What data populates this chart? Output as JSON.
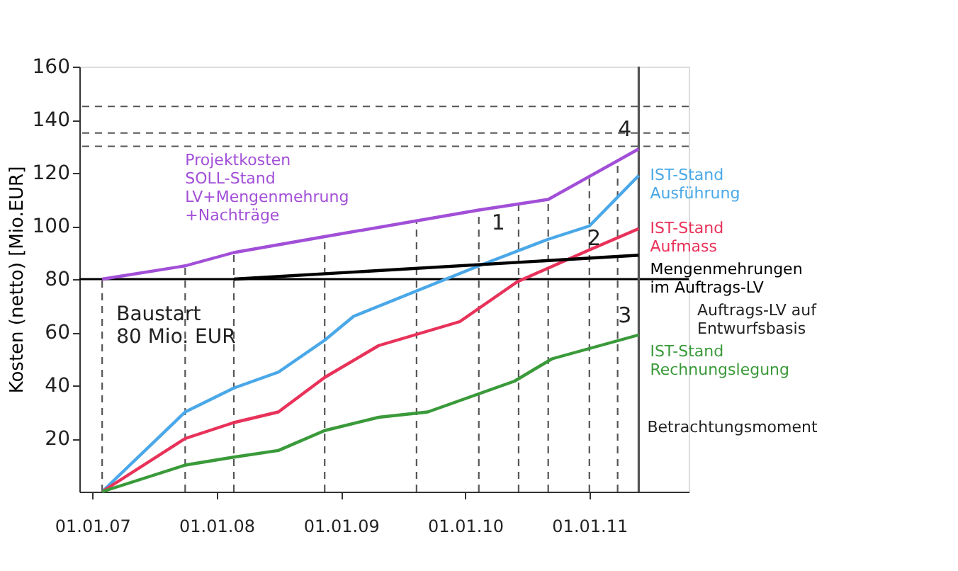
{
  "chart_data": {
    "type": "line",
    "ylabel": "Kosten (netto) [Mio.EUR]",
    "xlim": [
      "2006-11-24",
      "2011-10-20"
    ],
    "xticks": [
      {
        "value": "2007-01-01",
        "label": "01.01.07"
      },
      {
        "value": "2008-01-01",
        "label": "01.01.08"
      },
      {
        "value": "2009-01-01",
        "label": "01.01.09"
      },
      {
        "value": "2010-01-01",
        "label": "01.01.10"
      },
      {
        "value": "2011-01-01",
        "label": "01.01.11"
      }
    ],
    "ylim": [
      0,
      160
    ],
    "yticks": [
      20,
      40,
      60,
      80,
      100,
      120,
      140,
      160
    ],
    "grid": false,
    "marker": "none",
    "line_style": "solid",
    "series": [
      {
        "name": "Projektkosten\nSOLL-Stand\nLV+Mengenmehrung\n+Nachträge",
        "color": "#a24fd8",
        "x": [
          "2007-01-30",
          "2007-10-01",
          "2008-02-21",
          "2008-11-14",
          "2010-02-10",
          "2010-09-02",
          "2011-05-26"
        ],
        "values": [
          80,
          85,
          90,
          96,
          106,
          110,
          129
        ]
      },
      {
        "name": "IST-Stand\nAusführung",
        "color": "#4aa8e8",
        "x": [
          "2007-01-30",
          "2007-10-01",
          "2008-02-21",
          "2008-07-01",
          "2008-11-14",
          "2009-02-07",
          "2010-02-10",
          "2010-09-02",
          "2011-01-01",
          "2011-05-26"
        ],
        "values": [
          0,
          30,
          39,
          45,
          57,
          66,
          85,
          95,
          100,
          119
        ]
      },
      {
        "name": "IST-Stand\nAufmass",
        "color": "#e8325a",
        "x": [
          "2007-01-30",
          "2007-10-01",
          "2008-02-21",
          "2008-07-01",
          "2008-11-14",
          "2009-04-22",
          "2009-12-16",
          "2010-06-03",
          "2011-01-01",
          "2011-05-26"
        ],
        "values": [
          0,
          20,
          26,
          30,
          43,
          55,
          64,
          79,
          91,
          99
        ]
      },
      {
        "name": "Mengenmehrungen\nim Auftrags-LV",
        "color": "#000000",
        "x": [
          "2008-02-21",
          "2011-05-26"
        ],
        "values": [
          80,
          89
        ]
      },
      {
        "name": "IST-Stand\nRechnungslegung",
        "color": "#3a9a3a",
        "x": [
          "2007-01-30",
          "2007-10-01",
          "2008-02-21",
          "2008-07-01",
          "2008-11-14",
          "2009-04-22",
          "2009-09-13",
          "2010-05-26",
          "2010-09-13",
          "2011-05-26"
        ],
        "values": [
          0,
          10,
          13,
          15.5,
          23,
          28,
          30,
          41.6,
          50,
          59
        ]
      }
    ],
    "ref_lines": [
      {
        "axis": "y",
        "value": 80,
        "label": "Auftrags-LV auf\nEntwurfsbasis",
        "color": "#000000",
        "line_style": "solid"
      },
      {
        "axis": "x",
        "value": "2011-05-26",
        "label": "Betrachtungsmoment",
        "color": "#555555",
        "line_style": "solid"
      },
      {
        "axis": "y",
        "value": 145,
        "color": "#555555",
        "line_style": "dashed"
      },
      {
        "axis": "y",
        "value": 135,
        "color": "#555555",
        "line_style": "dashed"
      },
      {
        "axis": "y",
        "value": 130,
        "color": "#555555",
        "line_style": "dashed"
      },
      {
        "axis": "x",
        "value": "2007-01-30",
        "color": "#555555",
        "line_style": "dashed"
      },
      {
        "axis": "x",
        "value": "2007-10-01",
        "color": "#555555",
        "line_style": "dashed"
      },
      {
        "axis": "x",
        "value": "2008-02-21",
        "color": "#555555",
        "line_style": "dashed"
      },
      {
        "axis": "x",
        "value": "2008-11-14",
        "color": "#555555",
        "line_style": "dashed"
      },
      {
        "axis": "x",
        "value": "2009-08-11",
        "color": "#555555",
        "line_style": "dashed"
      },
      {
        "axis": "x",
        "value": "2010-02-10",
        "color": "#555555",
        "line_style": "dashed"
      },
      {
        "axis": "x",
        "value": "2010-06-07",
        "color": "#555555",
        "line_style": "dashed"
      },
      {
        "axis": "x",
        "value": "2010-09-02",
        "color": "#555555",
        "line_style": "dashed"
      },
      {
        "axis": "x",
        "value": "2011-01-01",
        "color": "#555555",
        "line_style": "dashed"
      },
      {
        "axis": "x",
        "value": "2011-03-25",
        "color": "#555555",
        "line_style": "dashed"
      }
    ],
    "annotations": [
      {
        "text": "Baustart\n80 Mio. EUR",
        "x": "2007-01-30",
        "y": 80
      },
      {
        "text": "1",
        "x": "2010-05-19",
        "y": 94
      },
      {
        "text": "2",
        "x": "2011-02-25",
        "y": 88
      },
      {
        "text": "3",
        "x": "2011-05-26",
        "y": 59
      },
      {
        "text": "4",
        "x": "2011-05-26",
        "y": 129
      }
    ]
  }
}
